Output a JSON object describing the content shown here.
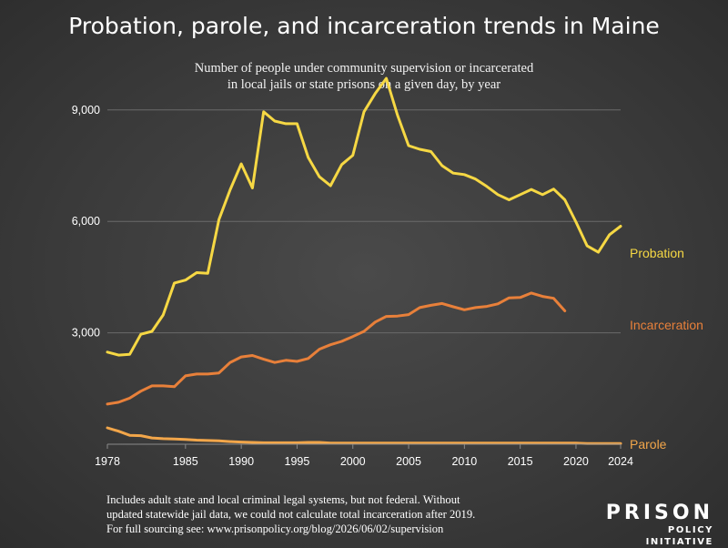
{
  "title": "Probation, parole, and incarceration trends in Maine",
  "subtitle": [
    "Number of people under community supervision or incarcerated",
    "in local jails or state prisons on a given day, by year"
  ],
  "footnote": [
    "Includes adult state and local criminal legal systems, but not federal. Without",
    "updated statewide jail data, we could not calculate total incarceration after 2019.",
    "For full sourcing see: www.prisonpolicy.org/blog/2026/06/02/supervision"
  ],
  "logo": {
    "line1": "PRISON",
    "line2": "POLICY INITIATIVE"
  },
  "colors": {
    "probation": "#f6d844",
    "incarceration": "#e8803a",
    "parole": "#f2a64a",
    "gridline": "#6a6a6a"
  },
  "chart_data": {
    "type": "line",
    "xlim": [
      1978,
      2024
    ],
    "ylim": [
      0,
      10000
    ],
    "x_ticks": [
      "1978",
      "1985",
      "1990",
      "1995",
      "2000",
      "2005",
      "2010",
      "2015",
      "2020",
      "2024"
    ],
    "y_ticks": [
      {
        "value": 3000,
        "label": "3,000"
      },
      {
        "value": 6000,
        "label": "6,000"
      },
      {
        "value": 9000,
        "label": "9,000"
      }
    ],
    "grid": "horizontal",
    "series": [
      {
        "name": "Probation",
        "key": "probation",
        "x": [
          1978,
          1979,
          1980,
          1981,
          1982,
          1983,
          1984,
          1985,
          1986,
          1987,
          1988,
          1989,
          1990,
          1991,
          1992,
          1993,
          1994,
          1995,
          1996,
          1997,
          1998,
          1999,
          2000,
          2001,
          2002,
          2003,
          2004,
          2005,
          2006,
          2007,
          2008,
          2009,
          2010,
          2011,
          2012,
          2013,
          2014,
          2015,
          2016,
          2017,
          2018,
          2019,
          2020,
          2021,
          2022,
          2023,
          2024
        ],
        "values": [
          2480,
          2400,
          2420,
          2960,
          3040,
          3480,
          4340,
          4420,
          4620,
          4600,
          6050,
          6850,
          7550,
          6900,
          8950,
          8700,
          8630,
          8630,
          7720,
          7200,
          6960,
          7530,
          7780,
          8950,
          9440,
          9850,
          8860,
          8040,
          7940,
          7880,
          7500,
          7300,
          7260,
          7140,
          6940,
          6720,
          6580,
          6720,
          6860,
          6720,
          6870,
          6580,
          5980,
          5340,
          5170,
          5640,
          5870
        ]
      },
      {
        "name": "Incarceration",
        "key": "incarceration",
        "x": [
          1978,
          1979,
          1980,
          1981,
          1982,
          1983,
          1984,
          1985,
          1986,
          1987,
          1988,
          1989,
          1990,
          1991,
          1992,
          1993,
          1994,
          1995,
          1996,
          1997,
          1998,
          1999,
          2000,
          2001,
          2002,
          2003,
          2004,
          2005,
          2006,
          2007,
          2008,
          2009,
          2010,
          2011,
          2012,
          2013,
          2014,
          2015,
          2016,
          2017,
          2018,
          2019
        ],
        "values": [
          1080,
          1130,
          1240,
          1430,
          1570,
          1570,
          1550,
          1840,
          1890,
          1890,
          1920,
          2200,
          2350,
          2390,
          2290,
          2200,
          2260,
          2230,
          2310,
          2560,
          2680,
          2770,
          2900,
          3040,
          3290,
          3440,
          3450,
          3490,
          3680,
          3740,
          3790,
          3700,
          3620,
          3680,
          3710,
          3780,
          3940,
          3950,
          4070,
          3980,
          3930,
          3590
        ]
      },
      {
        "name": "Parole",
        "key": "parole",
        "x": [
          1978,
          1979,
          1980,
          1981,
          1982,
          1983,
          1984,
          1985,
          1986,
          1987,
          1988,
          1989,
          1990,
          1991,
          1992,
          1993,
          1994,
          1995,
          1996,
          1997,
          1998,
          1999,
          2000,
          2001,
          2002,
          2003,
          2004,
          2005,
          2006,
          2007,
          2008,
          2009,
          2010,
          2011,
          2012,
          2013,
          2014,
          2015,
          2016,
          2017,
          2018,
          2019,
          2020,
          2021,
          2022,
          2023,
          2024
        ],
        "values": [
          440,
          350,
          240,
          230,
          170,
          150,
          140,
          130,
          110,
          100,
          90,
          70,
          60,
          50,
          40,
          40,
          40,
          40,
          50,
          50,
          30,
          30,
          30,
          30,
          30,
          30,
          30,
          30,
          30,
          30,
          30,
          30,
          30,
          30,
          30,
          30,
          30,
          30,
          30,
          30,
          30,
          30,
          30,
          20,
          20,
          20,
          20
        ]
      }
    ]
  }
}
